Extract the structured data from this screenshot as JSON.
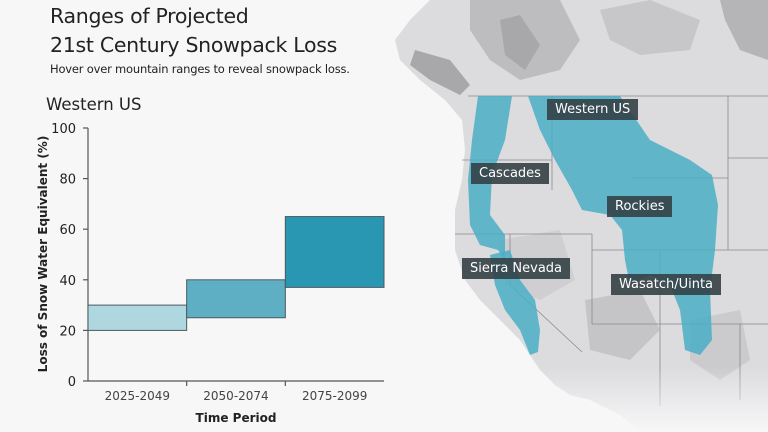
{
  "header": {
    "title_line1": "Ranges of Projected",
    "title_line2": "21st Century Snowpack Loss",
    "subtitle": "Hover over mountain ranges to reveal snowpack loss."
  },
  "chart": {
    "region_title": "Western US"
  },
  "chart_data": {
    "type": "bar",
    "subtype": "floating-range",
    "title": "Western US",
    "xlabel": "Time Period",
    "ylabel": "Loss of Snow Water Equivalent (%)",
    "ylim": [
      0,
      100
    ],
    "yticks": [
      "0",
      "20",
      "40",
      "60",
      "80",
      "100"
    ],
    "categories": [
      "2025-2049",
      "2050-2074",
      "2075-2099"
    ],
    "series": [
      {
        "name": "low",
        "values": [
          20,
          25,
          37
        ]
      },
      {
        "name": "high",
        "values": [
          30,
          40,
          65
        ]
      }
    ],
    "colors": [
      "#aed7df",
      "#5eafc4",
      "#2a97b2"
    ],
    "grid": false,
    "legend": "none"
  },
  "map": {
    "labels": [
      {
        "id": "western-us",
        "text": "Western US"
      },
      {
        "id": "cascades",
        "text": "Cascades"
      },
      {
        "id": "rockies",
        "text": "Rockies"
      },
      {
        "id": "sierra-nevada",
        "text": "Sierra Nevada"
      },
      {
        "id": "wasatch-uinta",
        "text": "Wasatch/Uinta"
      }
    ],
    "highlight_color": "#4aaec6"
  }
}
